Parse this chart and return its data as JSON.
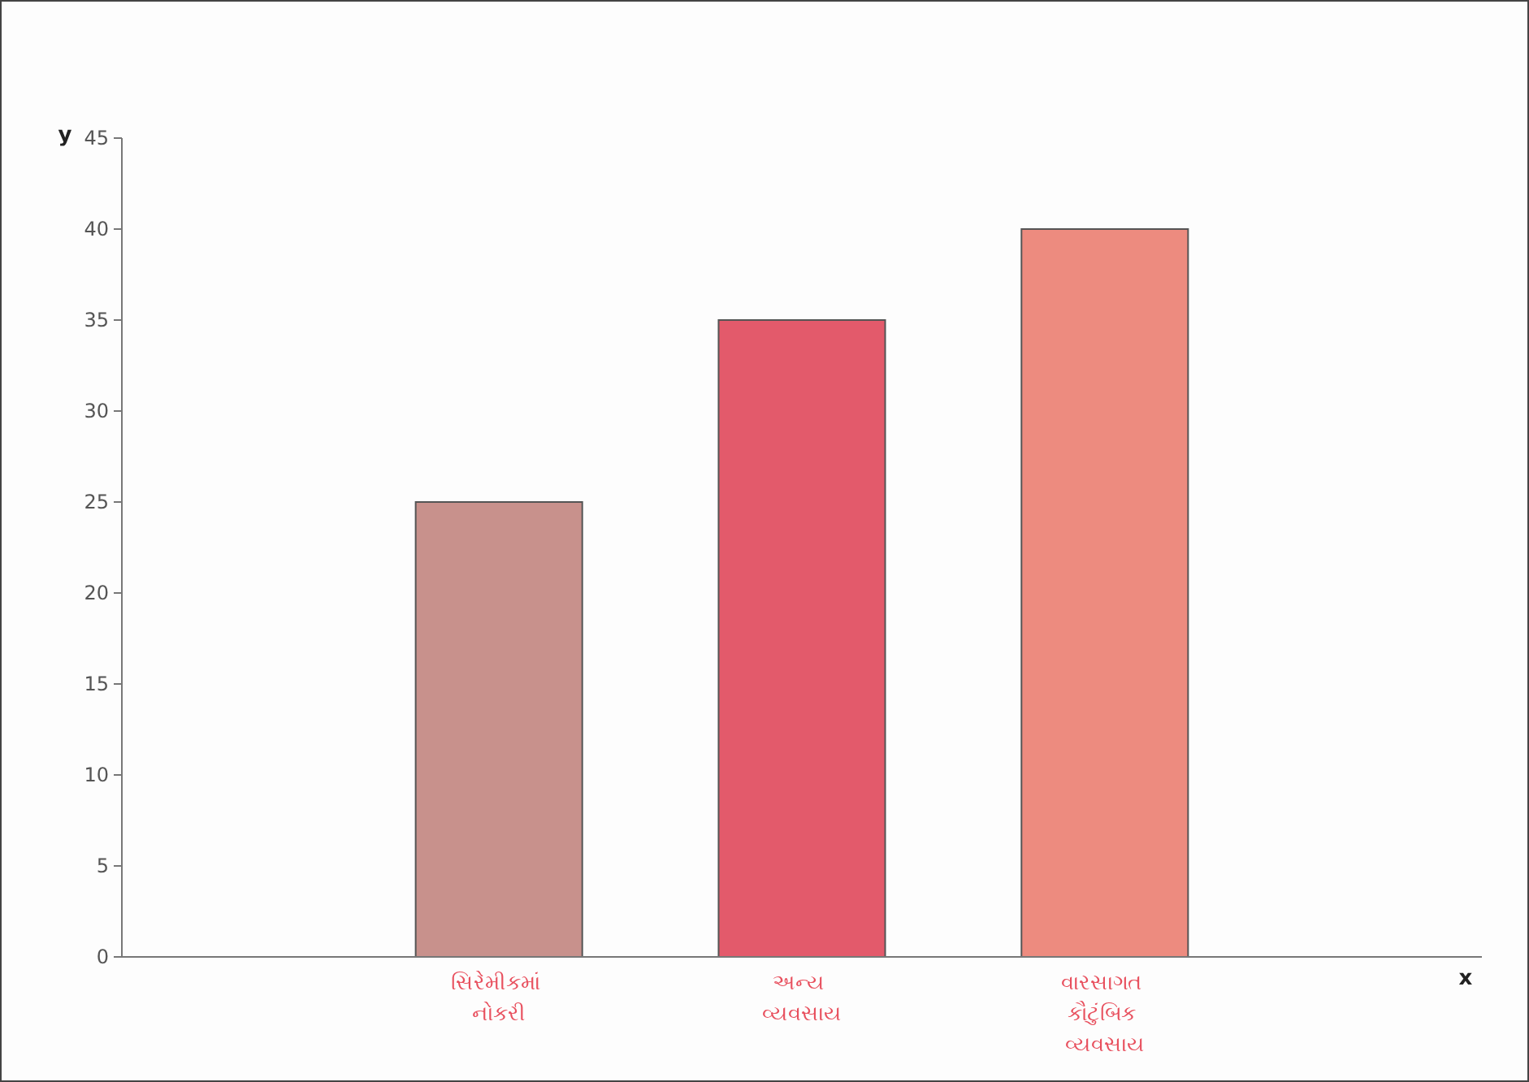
{
  "chart_data": {
    "type": "bar",
    "xlabel": "x",
    "ylabel": "y",
    "categories": [
      "સિરેમીકમાં નોકરી",
      "અન્ય વ્યવસાય",
      "વારસાગત કૌટુંબિક વ્યવસાય"
    ],
    "values": [
      25,
      35,
      40
    ],
    "colors": [
      "#c8918c",
      "#e35a6b",
      "#ed8b7f"
    ],
    "ylim": [
      0,
      45
    ],
    "yticks": [
      0,
      5,
      10,
      15,
      20,
      25,
      30,
      35,
      40,
      45
    ],
    "grid": false
  }
}
